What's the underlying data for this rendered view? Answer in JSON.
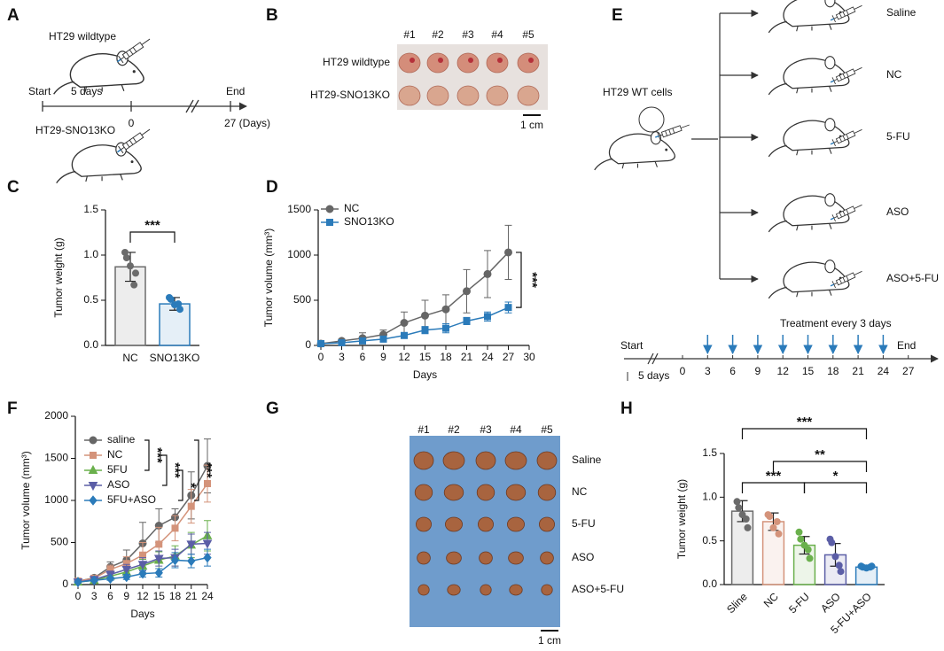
{
  "panel_labels": [
    "A",
    "B",
    "C",
    "D",
    "E",
    "F",
    "G",
    "H"
  ],
  "panel_a": {
    "group1": "HT29 wildtype",
    "group2": "HT29-SNO13KO",
    "start": "Start",
    "interval": "5 days",
    "zero": "0",
    "end": "End",
    "end_day": "27 (Days)"
  },
  "panel_b": {
    "columns": [
      "#1",
      "#2",
      "#3",
      "#4",
      "#5"
    ],
    "rows": [
      "HT29 wildtype",
      "HT29-SNO13KO"
    ],
    "scale": "1 cm"
  },
  "panel_e": {
    "source": "HT29 WT cells",
    "groups": [
      "Saline",
      "NC",
      "5-FU",
      "ASO",
      "ASO+5-FU"
    ],
    "treatment": "Treatment every 3 days",
    "start": "Start",
    "end": "End",
    "interval": "5 days",
    "days": [
      0,
      3,
      6,
      9,
      12,
      15,
      18,
      21,
      24,
      27
    ]
  },
  "panel_g": {
    "columns": [
      "#1",
      "#2",
      "#3",
      "#4",
      "#5"
    ],
    "rows": [
      "Saline",
      "NC",
      "5-FU",
      "ASO",
      "ASO+5-FU"
    ],
    "scale": "1 cm"
  },
  "chart_data": [
    {
      "type": "bar",
      "ylabel": "Tumor weight (g)",
      "categories": [
        "NC",
        "SNO13KO"
      ],
      "values": [
        0.87,
        0.46
      ],
      "errors": [
        0.16,
        0.07
      ],
      "points": [
        [
          1.03,
          0.97,
          0.88,
          0.67,
          0.8
        ],
        [
          0.53,
          0.51,
          0.45,
          0.46,
          0.4
        ]
      ],
      "colors": [
        "#6b6b6b",
        "#2b7bba"
      ],
      "ylim": [
        0,
        1.5
      ],
      "yticks": [
        {
          "value": 0,
          "label": "0.0"
        },
        0.5,
        {
          "value": 1,
          "label": "1.0"
        },
        1.5
      ],
      "annotations": [
        "***"
      ]
    },
    {
      "type": "line",
      "xlabel": "Days",
      "ylabel": "Tumor volume (mm³)",
      "x": [
        0,
        3,
        6,
        9,
        12,
        15,
        18,
        21,
        24,
        27
      ],
      "series": [
        {
          "name": "NC",
          "color": "#666666",
          "marker": "circle",
          "values": [
            20,
            50,
            80,
            120,
            250,
            330,
            400,
            600,
            790,
            1030
          ],
          "errors": [
            10,
            20,
            60,
            50,
            120,
            170,
            160,
            240,
            260,
            300
          ]
        },
        {
          "name": "SNO13KO",
          "color": "#2b7bba",
          "marker": "square",
          "values": [
            20,
            30,
            50,
            70,
            110,
            170,
            190,
            270,
            320,
            420
          ],
          "errors": [
            5,
            10,
            20,
            30,
            30,
            40,
            50,
            40,
            50,
            60
          ]
        }
      ],
      "xlim": [
        0,
        30
      ],
      "xticks": [
        0,
        3,
        6,
        9,
        12,
        15,
        18,
        21,
        24,
        27,
        30
      ],
      "ylim": [
        0,
        1500
      ],
      "yticks": [
        0,
        500,
        1000,
        1500
      ],
      "annotations": [
        "***"
      ]
    },
    {
      "type": "line",
      "xlabel": "Days",
      "ylabel": "Tumor volume (mm³)",
      "x": [
        0,
        3,
        6,
        9,
        12,
        15,
        18,
        21,
        24
      ],
      "series": [
        {
          "name": "saline",
          "color": "#666666",
          "marker": "circle",
          "values": [
            40,
            80,
            210,
            290,
            490,
            700,
            800,
            1060,
            1410
          ],
          "errors": [
            10,
            30,
            60,
            120,
            250,
            200,
            100,
            280,
            320
          ]
        },
        {
          "name": "NC",
          "color": "#d4937a",
          "marker": "square",
          "values": [
            40,
            75,
            180,
            250,
            350,
            480,
            670,
            930,
            1200
          ],
          "errors": [
            10,
            30,
            50,
            80,
            150,
            200,
            150,
            200,
            220
          ]
        },
        {
          "name": "5FU",
          "color": "#6ab04c",
          "marker": "triangle",
          "values": [
            30,
            50,
            100,
            150,
            220,
            290,
            340,
            470,
            580
          ],
          "errors": [
            5,
            20,
            40,
            60,
            80,
            100,
            120,
            150,
            180
          ]
        },
        {
          "name": "ASO",
          "color": "#5b5ea6",
          "marker": "triangle-down",
          "values": [
            30,
            60,
            120,
            180,
            240,
            310,
            320,
            480,
            490
          ],
          "errors": [
            5,
            20,
            40,
            60,
            80,
            90,
            100,
            120,
            130
          ]
        },
        {
          "name": "5FU+ASO",
          "color": "#2b7bba",
          "marker": "diamond",
          "values": [
            30,
            50,
            70,
            90,
            130,
            140,
            290,
            280,
            320
          ],
          "errors": [
            5,
            10,
            20,
            30,
            40,
            50,
            90,
            80,
            100
          ]
        }
      ],
      "xlim": [
        0,
        24
      ],
      "xticks": [
        0,
        3,
        6,
        9,
        12,
        15,
        18,
        21,
        24
      ],
      "ylim": [
        0,
        2000
      ],
      "yticks": [
        0,
        500,
        1000,
        1500,
        2000
      ],
      "annotations": [
        "***",
        "***",
        "*",
        "***"
      ]
    },
    {
      "type": "bar",
      "ylabel": "Tumor weight (g)",
      "categories": [
        "Sline",
        "NC",
        "5-FU",
        "ASO",
        "5-FU+ASO"
      ],
      "values": [
        0.84,
        0.72,
        0.45,
        0.34,
        0.2
      ],
      "errors": [
        0.12,
        0.1,
        0.1,
        0.13,
        0.02
      ],
      "points": [
        [
          0.95,
          0.88,
          0.8,
          0.75,
          0.65
        ],
        [
          0.8,
          0.78,
          0.65,
          0.72,
          0.58
        ],
        [
          0.6,
          0.52,
          0.45,
          0.4,
          0.3
        ],
        [
          0.52,
          0.48,
          0.32,
          0.22,
          0.15
        ],
        [
          0.21,
          0.2,
          0.19,
          0.2,
          0.21
        ]
      ],
      "colors": [
        "#6b6b6b",
        "#d4937a",
        "#6ab04c",
        "#5b5ea6",
        "#2b7bba"
      ],
      "ylim": [
        0,
        1.5
      ],
      "yticks": [
        {
          "value": 0,
          "label": "0.0"
        },
        0.5,
        {
          "value": 1,
          "label": "1.0"
        },
        1.5
      ],
      "annotations": [
        "***",
        "**",
        "***",
        "*"
      ]
    }
  ]
}
